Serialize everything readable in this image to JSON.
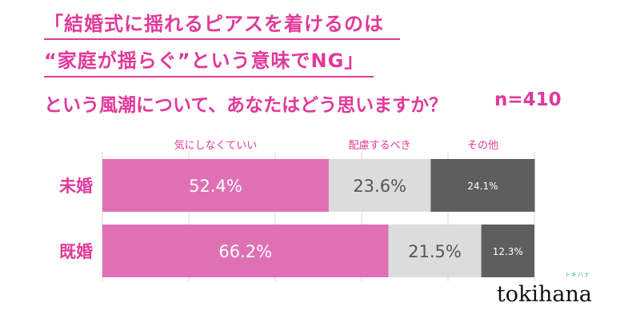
{
  "title": {
    "line1": "「結婚式に揺れるピアスを着けるのは",
    "line2": "“家庭が揺らぐ”という意味でNG」",
    "question": "という風潮について、あなたはどう思いますか？",
    "sample": "n=410"
  },
  "chart_data": {
    "type": "bar",
    "stacked": true,
    "orientation": "horizontal",
    "categories": [
      "未婚",
      "既婚"
    ],
    "series": [
      {
        "name": "気にしなくていい",
        "values": [
          52.4,
          66.2
        ],
        "color": "#e070b4",
        "label_color": "#ffffff"
      },
      {
        "name": "配慮するべき",
        "values": [
          23.6,
          21.5
        ],
        "color": "#dcdcdc",
        "label_color": "#555555"
      },
      {
        "name": "その他",
        "values": [
          24.1,
          12.3
        ],
        "color": "#5e5e5e",
        "label_color": "#ffffff"
      }
    ],
    "value_labels": [
      [
        "52.4%",
        "23.6%",
        "24.1%"
      ],
      [
        "66.2%",
        "21.5%",
        "12.3%"
      ]
    ],
    "xlim": [
      0,
      100
    ],
    "grid": true,
    "legend": "top"
  },
  "brand": {
    "logo": "tokihana",
    "logo_kana": "トキハナ"
  }
}
